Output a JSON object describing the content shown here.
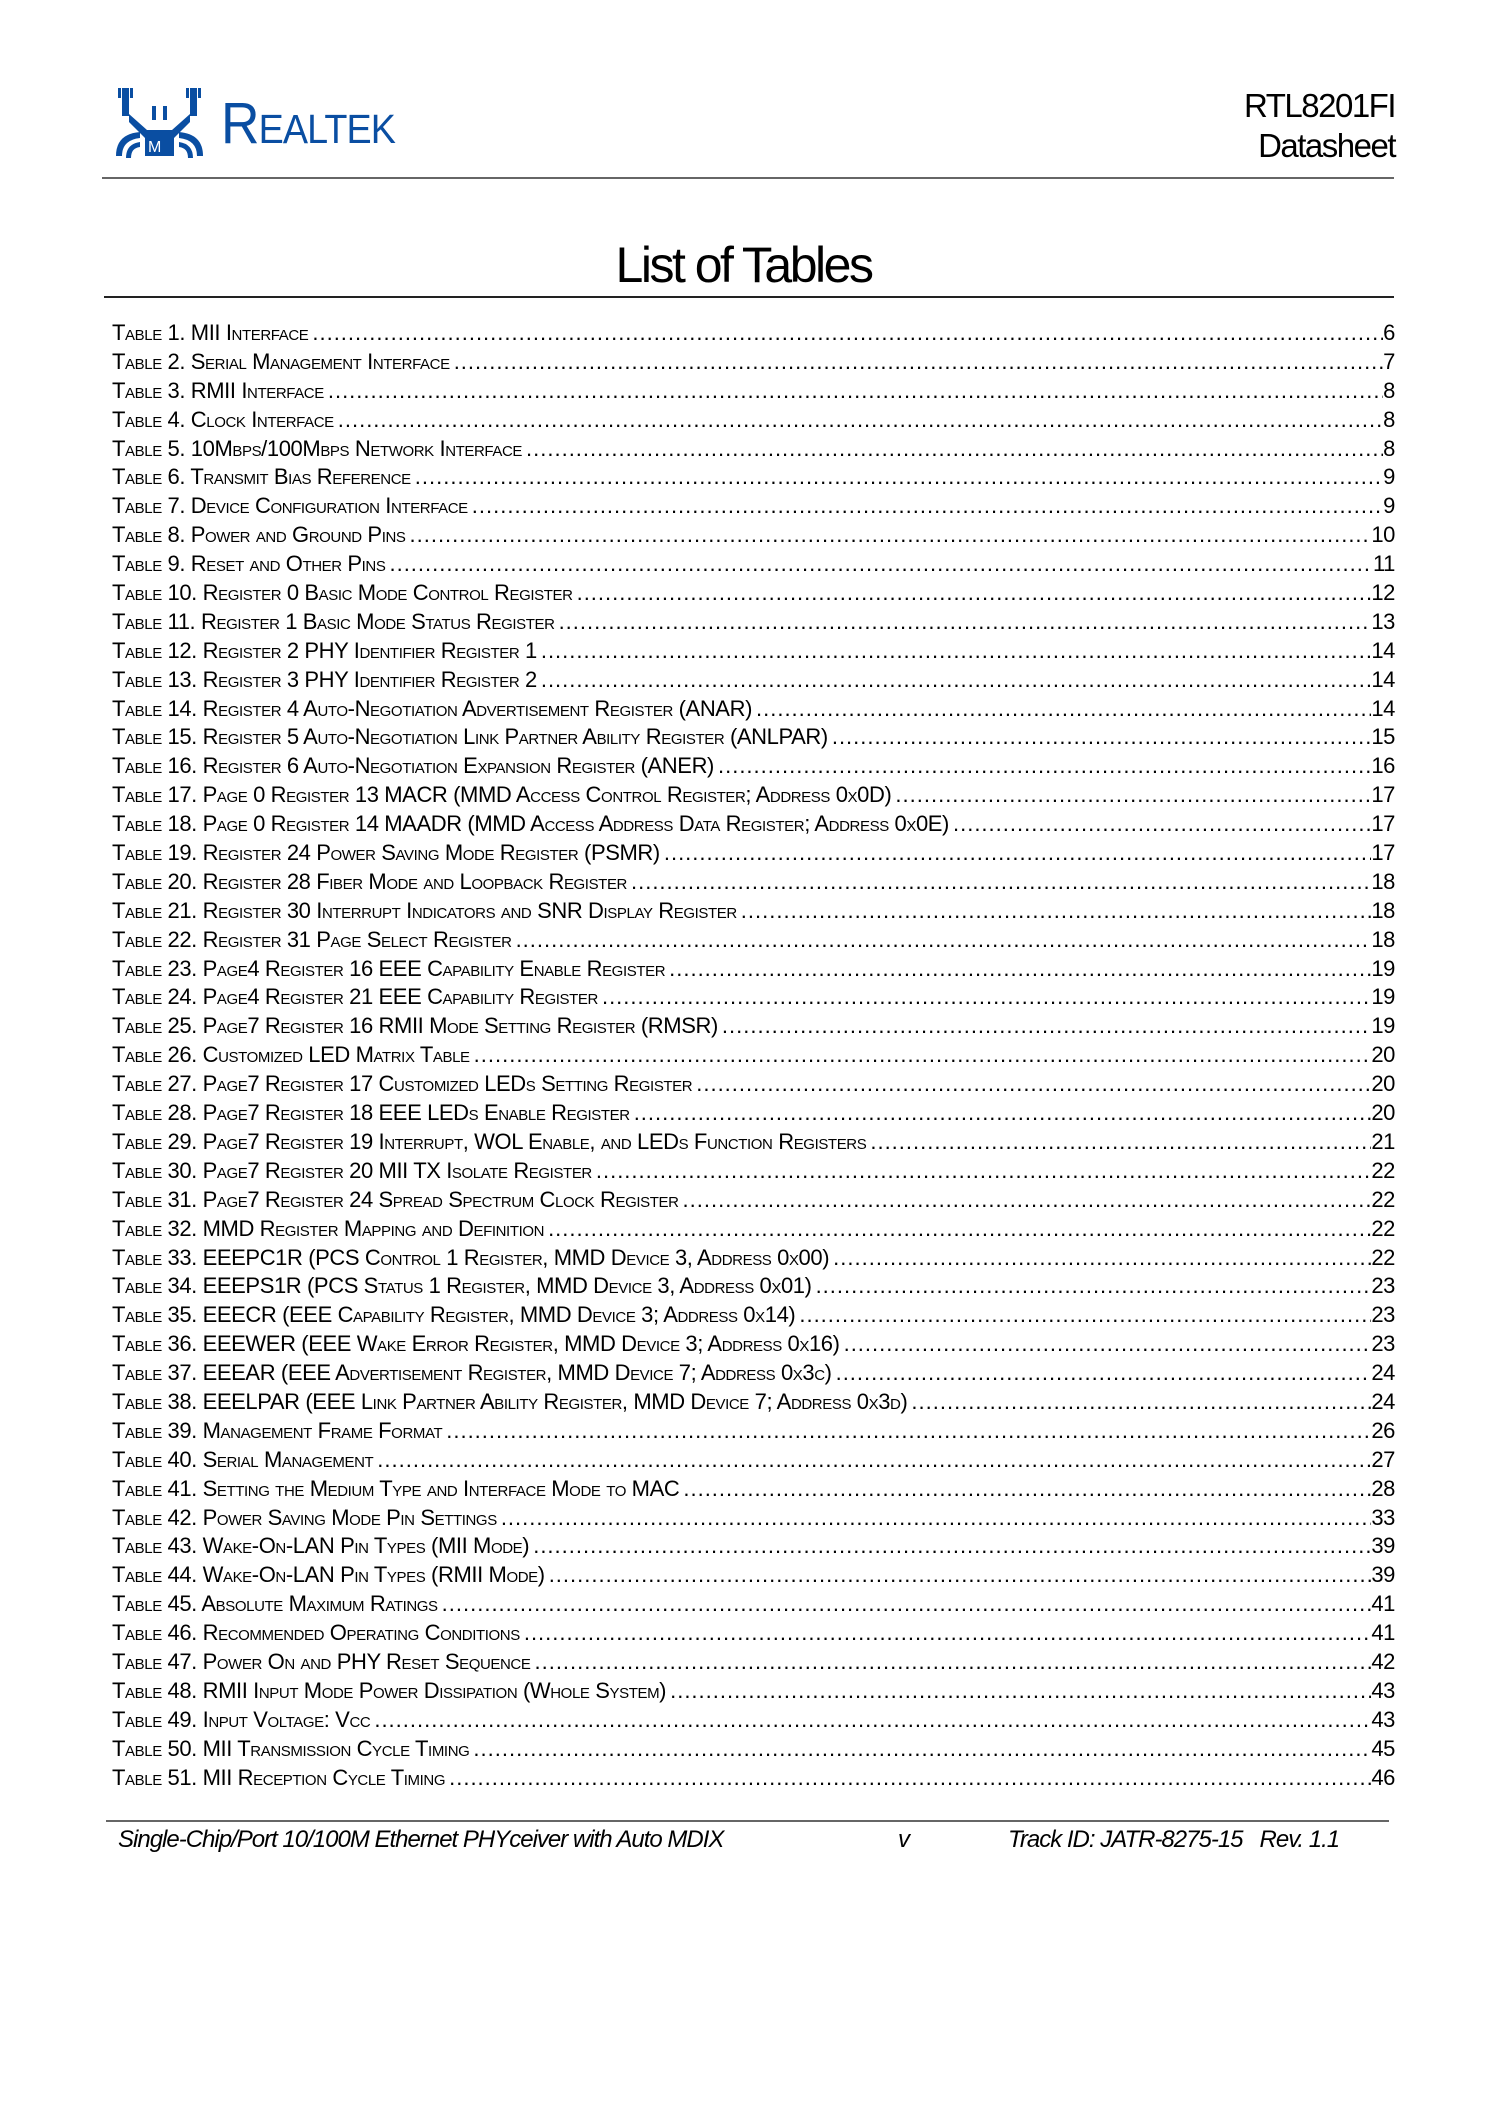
{
  "header": {
    "logo_text": "Realtek",
    "brand_color": "#0a4ea2",
    "product": "RTL8201FI",
    "doc_type": "Datasheet"
  },
  "title": "List of Tables",
  "entries": [
    {
      "label": "Table 1.  MII Interface",
      "page": "6"
    },
    {
      "label": "Table 2.  Serial Management Interface",
      "page": "7"
    },
    {
      "label": "Table 3.  RMII Interface",
      "page": "8"
    },
    {
      "label": "Table 4.  Clock Interface",
      "page": "8"
    },
    {
      "label": "Table 5.  10Mbps/100Mbps Network Interface",
      "page": "8"
    },
    {
      "label": "Table 6.  Transmit Bias Reference",
      "page": "9"
    },
    {
      "label": "Table 7.  Device Configuration Interface",
      "page": "9"
    },
    {
      "label": "Table 8.  Power and Ground Pins",
      "page": "10"
    },
    {
      "label": "Table 9.  Reset and Other Pins",
      "page": "11"
    },
    {
      "label": "Table 10. Register 0 Basic Mode Control Register",
      "page": "12"
    },
    {
      "label": "Table 11. Register 1 Basic Mode Status Register",
      "page": "13"
    },
    {
      "label": "Table 12. Register 2 PHY Identifier Register 1",
      "page": "14"
    },
    {
      "label": "Table 13. Register 3 PHY Identifier Register 2",
      "page": "14"
    },
    {
      "label": "Table 14. Register 4 Auto-Negotiation Advertisement Register (ANAR)",
      "page": "14"
    },
    {
      "label": "Table 15. Register 5 Auto-Negotiation Link Partner Ability Register (ANLPAR)",
      "page": "15"
    },
    {
      "label": "Table 16. Register 6 Auto-Negotiation Expansion Register (ANER)",
      "page": "16"
    },
    {
      "label": "Table 17. Page 0 Register 13 MACR (MMD Access Control Register; Address 0x0D)",
      "page": "17"
    },
    {
      "label": "Table 18. Page 0 Register 14 MAADR (MMD Access Address Data Register; Address 0x0E)",
      "page": "17"
    },
    {
      "label": "Table 19. Register 24 Power Saving Mode Register (PSMR)",
      "page": "17"
    },
    {
      "label": "Table 20. Register 28 Fiber Mode and Loopback Register",
      "page": "18"
    },
    {
      "label": "Table 21. Register 30 Interrupt Indicators and SNR Display Register",
      "page": "18"
    },
    {
      "label": "Table 22. Register 31 Page Select Register",
      "page": "18"
    },
    {
      "label": "Table 23. Page4 Register 16 EEE Capability Enable Register",
      "page": "19"
    },
    {
      "label": "Table 24. Page4 Register 21 EEE Capability Register",
      "page": "19"
    },
    {
      "label": "Table 25. Page7 Register 16 RMII Mode Setting Register (RMSR)",
      "page": "19"
    },
    {
      "label": "Table 26. Customized LED Matrix Table",
      "page": "20"
    },
    {
      "label": "Table 27. Page7 Register 17 Customized LEDs Setting Register",
      "page": "20"
    },
    {
      "label": "Table 28. Page7 Register 18 EEE LEDs Enable Register",
      "page": "20"
    },
    {
      "label": "Table 29. Page7 Register 19 Interrupt, WOL Enable, and LEDs Function Registers",
      "page": "21"
    },
    {
      "label": "Table 30. Page7 Register 20 MII TX Isolate Register",
      "page": "22"
    },
    {
      "label": "Table 31. Page7 Register 24 Spread Spectrum Clock Register",
      "page": "22"
    },
    {
      "label": "Table 32. MMD Register Mapping and Definition",
      "page": "22"
    },
    {
      "label": "Table 33. EEEPC1R (PCS Control 1 Register, MMD Device 3, Address 0x00)",
      "page": "22"
    },
    {
      "label": "Table 34. EEEPS1R (PCS Status 1 Register, MMD Device 3, Address 0x01)",
      "page": "23"
    },
    {
      "label": "Table 35. EEECR (EEE Capability Register, MMD Device 3; Address 0x14)",
      "page": "23"
    },
    {
      "label": "Table 36. EEEWER (EEE Wake Error Register, MMD Device 3; Address 0x16)",
      "page": "23"
    },
    {
      "label": "Table 37. EEEAR (EEE Advertisement Register, MMD Device 7; Address 0x3c)",
      "page": "24"
    },
    {
      "label": "Table 38. EEELPAR (EEE Link Partner Ability Register, MMD Device 7; Address 0x3d)",
      "page": "24"
    },
    {
      "label": "Table 39. Management Frame Format",
      "page": "26"
    },
    {
      "label": "Table 40. Serial Management",
      "page": "27"
    },
    {
      "label": "Table 41. Setting the Medium Type and Interface Mode to MAC",
      "page": "28"
    },
    {
      "label": "Table 42. Power Saving Mode Pin Settings",
      "page": "33"
    },
    {
      "label": "Table 43. Wake-On-LAN Pin Types (MII Mode)",
      "page": "39"
    },
    {
      "label": "Table 44. Wake-On-LAN Pin Types (RMII Mode)",
      "page": "39"
    },
    {
      "label": "Table 45. Absolute Maximum Ratings",
      "page": "41"
    },
    {
      "label": "Table 46. Recommended Operating Conditions",
      "page": "41"
    },
    {
      "label": "Table 47. Power On and PHY Reset Sequence",
      "page": "42"
    },
    {
      "label": "Table 48. RMII Input Mode Power Dissipation (Whole System)",
      "page": "43"
    },
    {
      "label": "Table 49. Input Voltage: Vcc",
      "page": "43"
    },
    {
      "label": "Table 50. MII Transmission Cycle Timing",
      "page": "45"
    },
    {
      "label": "Table 51. MII Reception Cycle Timing",
      "page": "46"
    }
  ],
  "footer": {
    "left": "Single-Chip/Port 10/100M Ethernet PHYceiver with Auto MDIX",
    "page": "v",
    "track": "Track ID: JATR-8275-15   Rev. 1.1"
  }
}
